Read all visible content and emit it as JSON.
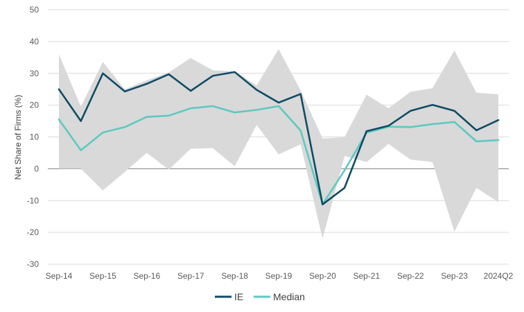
{
  "chart_data": {
    "type": "line",
    "ylabel": "Net Share of Firms (%)",
    "ylim": [
      -30,
      50
    ],
    "yticks": [
      -30,
      -20,
      -10,
      0,
      10,
      20,
      30,
      40,
      50
    ],
    "grid": "horizontal",
    "x": [
      "Sep-14",
      "Mar-15",
      "Sep-15",
      "Mar-16",
      "Sep-16",
      "Mar-17",
      "Sep-17",
      "Mar-18",
      "Sep-18",
      "Mar-19",
      "Sep-19",
      "Mar-20",
      "Sep-20",
      "Mar-21",
      "Sep-21",
      "Mar-22",
      "Sep-22",
      "Mar-23",
      "Sep-23",
      "Mar-24",
      "2024Q2"
    ],
    "xtick_labels": [
      "Sep-14",
      "Sep-15",
      "Sep-16",
      "Sep-17",
      "Sep-18",
      "Sep-19",
      "Sep-20",
      "Sep-21",
      "Sep-22",
      "Sep-23",
      "2024Q2"
    ],
    "series": [
      {
        "name": "IE",
        "color": "#0f4c64",
        "values": [
          25.0,
          15.0,
          30.0,
          24.3,
          26.7,
          29.7,
          24.5,
          29.2,
          30.4,
          24.8,
          20.8,
          23.5,
          -11.2,
          -6.0,
          11.8,
          13.5,
          18.2,
          20.1,
          18.2,
          12.1,
          15.3
        ]
      },
      {
        "name": "Median",
        "color": "#5ec9c0",
        "values": [
          15.5,
          5.8,
          11.4,
          13.1,
          16.3,
          16.7,
          19.0,
          19.7,
          17.7,
          18.5,
          19.7,
          12.0,
          -11.2,
          -0.5,
          11.3,
          13.2,
          13.1,
          14.0,
          14.7,
          8.6,
          9.0
        ]
      }
    ],
    "band": {
      "color": "#d9d9d9",
      "upper": [
        36.0,
        19.5,
        33.6,
        25.0,
        27.8,
        30.3,
        34.8,
        31.0,
        30.6,
        26.2,
        37.6,
        24.6,
        9.5,
        9.9,
        23.3,
        19.0,
        24.2,
        25.3,
        37.2,
        23.9,
        23.4
      ],
      "lower": [
        0.0,
        0.0,
        -6.8,
        -1.0,
        5.0,
        -0.3,
        6.3,
        6.5,
        0.8,
        13.8,
        4.5,
        7.7,
        -22.0,
        4.0,
        2.1,
        7.8,
        2.9,
        2.1,
        -19.8,
        -6.0,
        -10.5
      ]
    },
    "legend": {
      "position": "bottom",
      "entries": [
        "IE",
        "Median"
      ]
    }
  }
}
